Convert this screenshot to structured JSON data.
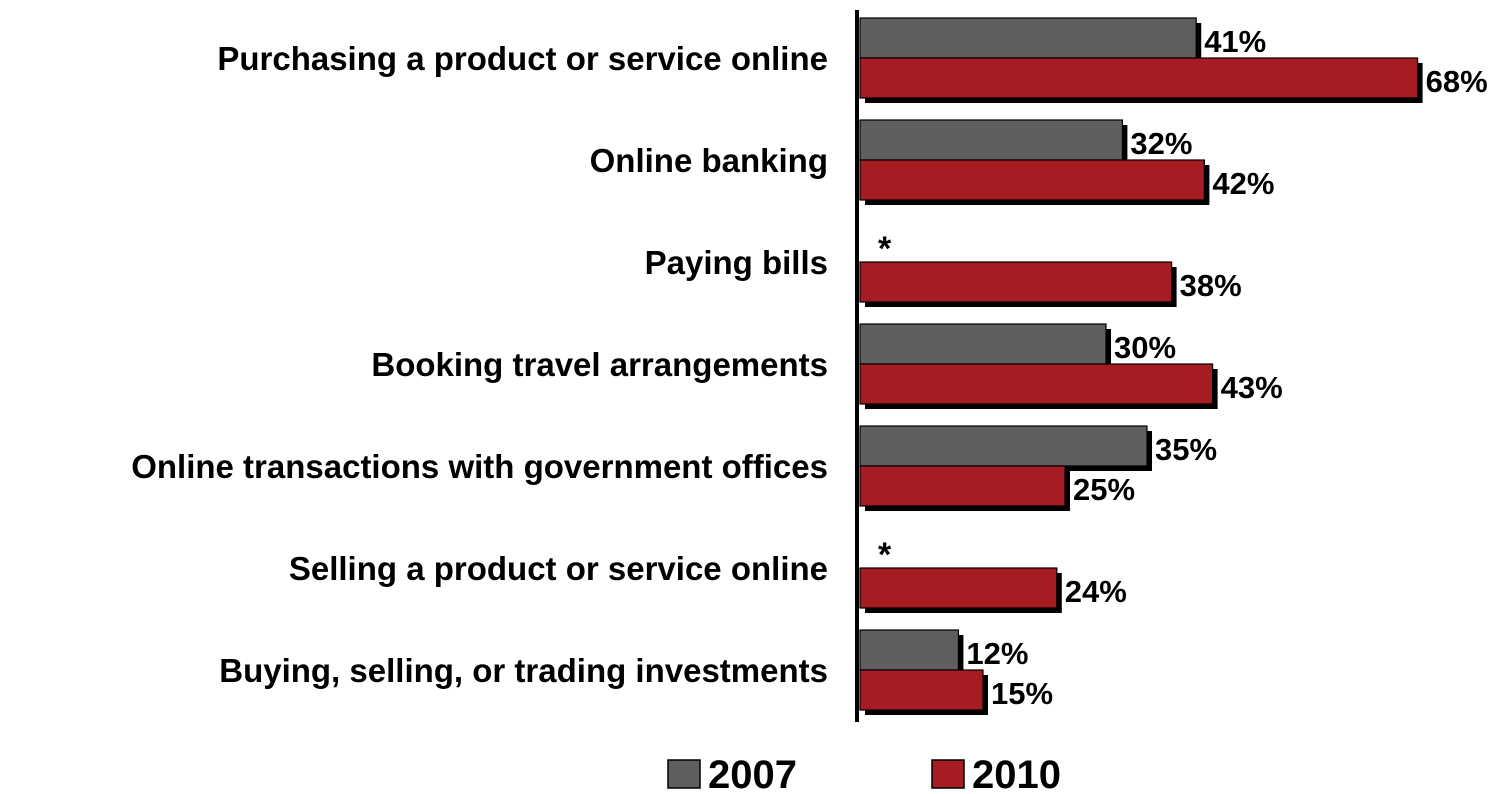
{
  "chart_data": {
    "type": "bar",
    "orientation": "horizontal",
    "categories": [
      "Purchasing a product or service online",
      "Online banking",
      "Paying bills",
      "Booking travel arrangements",
      "Online transactions with government offices",
      "Selling a product or service online",
      "Buying, selling, or trading investments"
    ],
    "series": [
      {
        "name": "2007",
        "color": "#5f5f61",
        "values": [
          41,
          32,
          null,
          30,
          35,
          null,
          12
        ],
        "labels": [
          "41%",
          "32%",
          "*",
          "30%",
          "35%",
          "*",
          "12%"
        ]
      },
      {
        "name": "2010",
        "color": "#a51c22",
        "values": [
          68,
          42,
          38,
          43,
          25,
          24,
          15
        ],
        "labels": [
          "68%",
          "42%",
          "38%",
          "43%",
          "25%",
          "24%",
          "15%"
        ]
      }
    ],
    "xlim": [
      0,
      70
    ],
    "grid": false,
    "legend_position": "bottom"
  }
}
